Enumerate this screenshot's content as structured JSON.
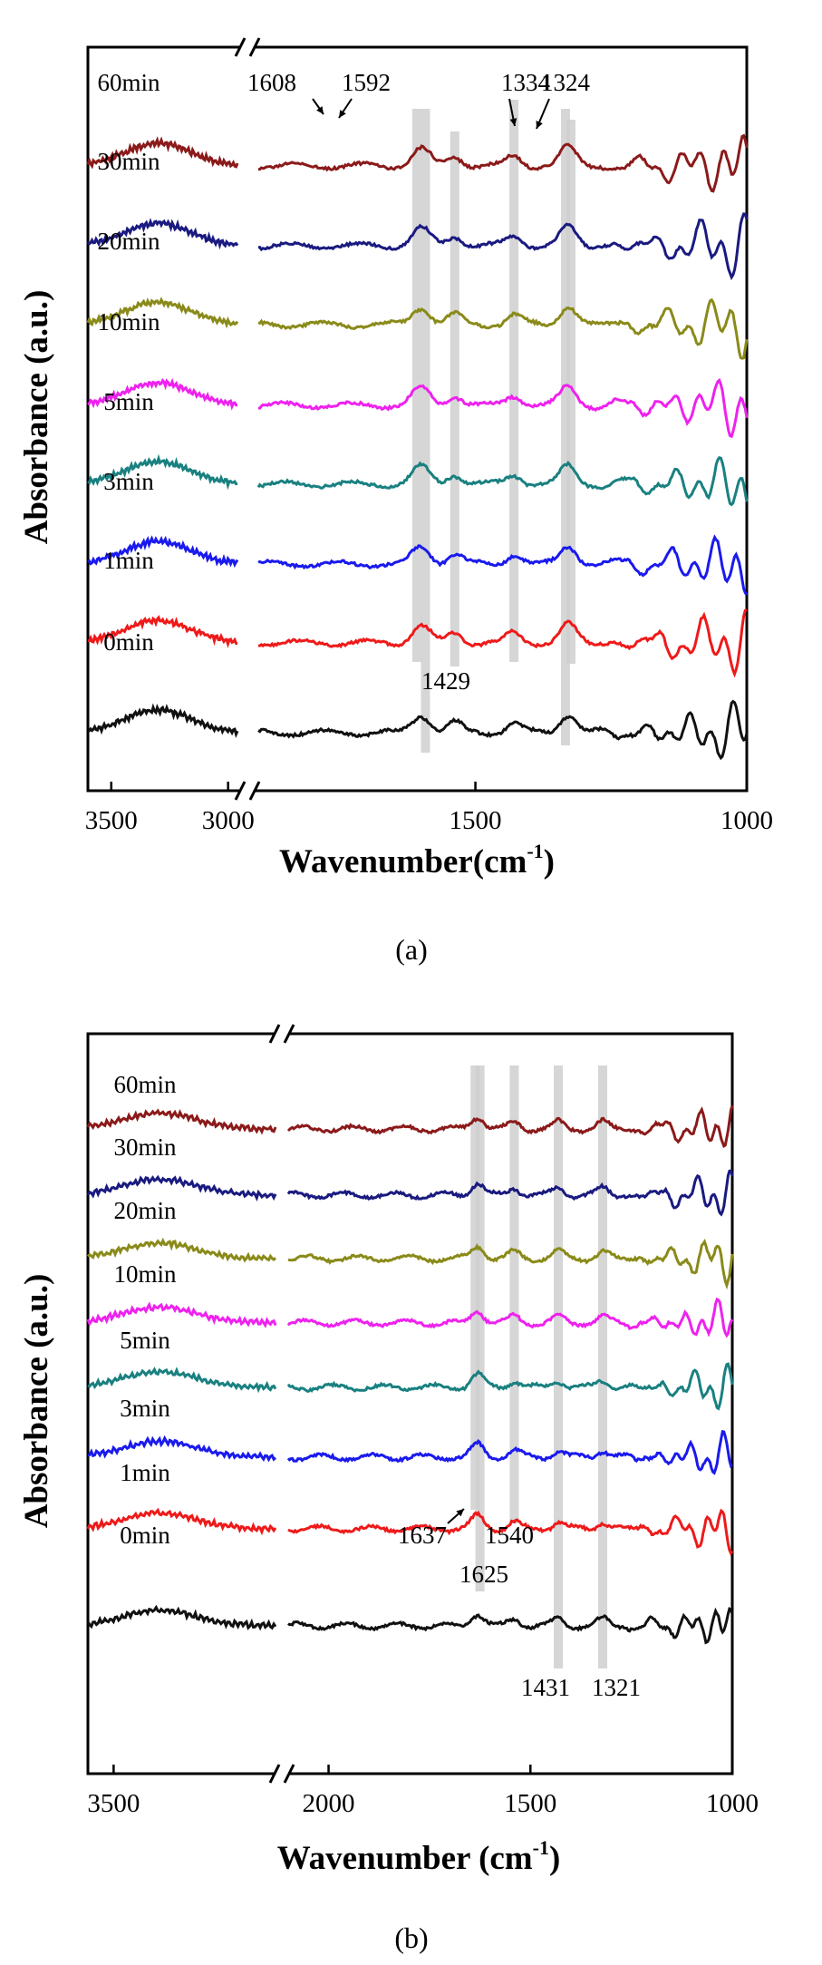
{
  "chart_data": [
    {
      "type": "line",
      "panel": "a",
      "caption": "(a)",
      "xlabel_main": "Wavenumber(cm",
      "xlabel_sup": "-1",
      "xlabel_tail": ")",
      "ylabel": "Absorbance (a.u.)",
      "x_axis_broken": true,
      "x_segments": [
        {
          "xlim": [
            3600,
            2960
          ]
        },
        {
          "xlim": [
            1900,
            1000
          ]
        }
      ],
      "x_ticks": [
        {
          "value": 3500,
          "label": "3500"
        },
        {
          "value": 3000,
          "label": "3000"
        },
        {
          "value": 1500,
          "label": "1500"
        },
        {
          "value": 1000,
          "label": "1000"
        }
      ],
      "series": [
        {
          "name": "60min",
          "color": "#8b1a1a"
        },
        {
          "name": "30min",
          "color": "#1a1a80"
        },
        {
          "name": "20min",
          "color": "#8a8a1a"
        },
        {
          "name": "10min",
          "color": "#ee22ee"
        },
        {
          "name": "5min",
          "color": "#1a8080"
        },
        {
          "name": "3min",
          "color": "#1a1aee"
        },
        {
          "name": "1min",
          "color": "#ee1a1a"
        },
        {
          "name": "0min",
          "color": "#111111"
        }
      ],
      "highlight_bands": [
        1608,
        1592,
        1538,
        1429,
        1334,
        1324
      ],
      "annotations": [
        {
          "label": "1608",
          "x": 1608,
          "arrow": true
        },
        {
          "label": "1592",
          "x": 1592,
          "arrow": true
        },
        {
          "label": "1334",
          "x": 1334,
          "arrow": true
        },
        {
          "label": "1324",
          "x": 1324,
          "arrow": true
        },
        {
          "label": "1429",
          "x": 1429,
          "arrow": false
        }
      ]
    },
    {
      "type": "line",
      "panel": "b",
      "caption": "(b)",
      "xlabel_main": "Wavenumber (cm",
      "xlabel_sup": "-1",
      "xlabel_tail": ")",
      "ylabel": "Absorbance (a.u.)",
      "x_axis_broken": true,
      "x_segments": [
        {
          "xlim": [
            3600,
            2870
          ]
        },
        {
          "xlim": [
            2100,
            1000
          ]
        }
      ],
      "x_ticks": [
        {
          "value": 3500,
          "label": "3500"
        },
        {
          "value": 2000,
          "label": "2000"
        },
        {
          "value": 1500,
          "label": "1500"
        },
        {
          "value": 1000,
          "label": "1000"
        }
      ],
      "series": [
        {
          "name": "60min",
          "color": "#8b1a1a"
        },
        {
          "name": "30min",
          "color": "#1a1a80"
        },
        {
          "name": "20min",
          "color": "#8a8a1a"
        },
        {
          "name": "10min",
          "color": "#ee22ee"
        },
        {
          "name": "5min",
          "color": "#1a8080"
        },
        {
          "name": "3min",
          "color": "#1a1aee"
        },
        {
          "name": "1min",
          "color": "#ee1a1a"
        },
        {
          "name": "0min",
          "color": "#111111"
        }
      ],
      "highlight_bands": [
        1637,
        1625,
        1540,
        1431,
        1321
      ],
      "annotations": [
        {
          "label": "1637",
          "x": 1637,
          "arrow": true
        },
        {
          "label": "1540",
          "x": 1540,
          "arrow": false
        },
        {
          "label": "1625",
          "x": 1625,
          "arrow": false
        },
        {
          "label": "1431",
          "x": 1431,
          "arrow": false
        },
        {
          "label": "1321",
          "x": 1321,
          "arrow": false
        }
      ]
    }
  ]
}
